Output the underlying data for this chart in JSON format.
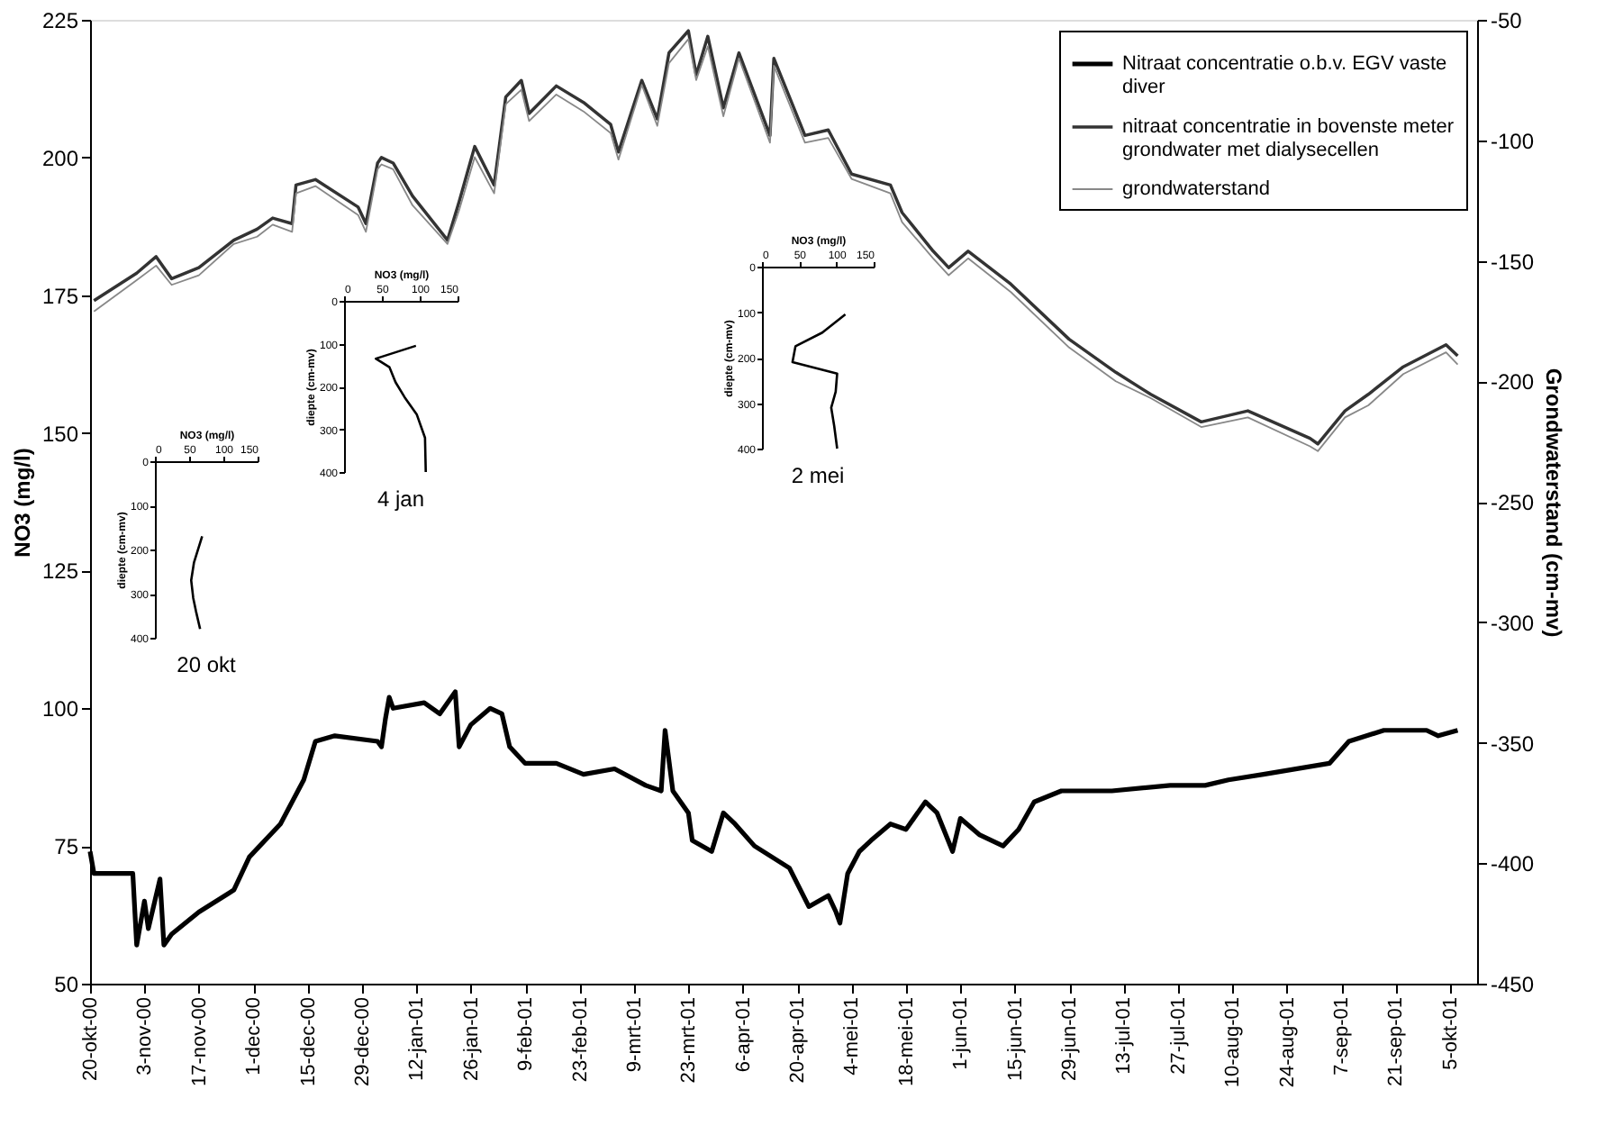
{
  "chart_data": [
    {
      "type": "line",
      "ylabel": "NO3 (mg/l)",
      "y2label": "Grondwaterstand (cm-mv)",
      "legend": "top right",
      "xlim": [
        "2000-10-20",
        "2001-10-12"
      ],
      "xticks": [
        {
          "value": "2000-10-20",
          "label": "20-okt-00"
        },
        {
          "value": "2000-11-03",
          "label": "3-nov-00"
        },
        {
          "value": "2000-11-17",
          "label": "17-nov-00"
        },
        {
          "value": "2000-12-01",
          "label": "1-dec-00"
        },
        {
          "value": "2000-12-15",
          "label": "15-dec-00"
        },
        {
          "value": "2000-12-29",
          "label": "29-dec-00"
        },
        {
          "value": "2001-01-12",
          "label": "12-jan-01"
        },
        {
          "value": "2001-01-26",
          "label": "26-jan-01"
        },
        {
          "value": "2001-02-09",
          "label": "9-feb-01"
        },
        {
          "value": "2001-02-23",
          "label": "23-feb-01"
        },
        {
          "value": "2001-03-09",
          "label": "9-mrt-01"
        },
        {
          "value": "2001-03-23",
          "label": "23-mrt-01"
        },
        {
          "value": "2001-04-06",
          "label": "6-apr-01"
        },
        {
          "value": "2001-04-20",
          "label": "20-apr-01"
        },
        {
          "value": "2001-05-04",
          "label": "4-mei-01"
        },
        {
          "value": "2001-05-18",
          "label": "18-mei-01"
        },
        {
          "value": "2001-06-01",
          "label": "1-jun-01"
        },
        {
          "value": "2001-06-15",
          "label": "15-jun-01"
        },
        {
          "value": "2001-06-29",
          "label": "29-jun-01"
        },
        {
          "value": "2001-07-13",
          "label": "13-jul-01"
        },
        {
          "value": "2001-07-27",
          "label": "27-jul-01"
        },
        {
          "value": "2001-08-10",
          "label": "10-aug-01"
        },
        {
          "value": "2001-08-24",
          "label": "24-aug-01"
        },
        {
          "value": "2001-09-07",
          "label": "7-sep-01"
        },
        {
          "value": "2001-09-21",
          "label": "21-sep-01"
        },
        {
          "value": "2001-10-05",
          "label": "5-okt-01"
        }
      ],
      "ylim": [
        50,
        225
      ],
      "yticks": [
        50,
        75,
        100,
        125,
        150,
        175,
        200,
        225
      ],
      "y2lim": [
        -450,
        -50
      ],
      "y2ticks": [
        -450,
        -400,
        -350,
        -300,
        -250,
        -200,
        -150,
        -100,
        -50
      ],
      "series": [
        {
          "name": "Nitraat concentratie o.b.v. EGV vaste diver",
          "color": "#000000",
          "x": [
            "2000-10-20",
            "2000-10-21",
            "2000-10-31",
            "2000-11-01",
            "2000-11-03",
            "2000-11-04",
            "2000-11-07",
            "2000-11-08",
            "2000-11-10",
            "2000-11-17",
            "2000-11-26",
            "2000-11-30",
            "2000-12-08",
            "2000-12-14",
            "2000-12-17",
            "2000-12-22",
            "2001-01-02",
            "2001-01-03",
            "2001-01-04",
            "2001-01-05",
            "2001-01-06",
            "2001-01-14",
            "2001-01-18",
            "2001-01-20",
            "2001-01-22",
            "2001-01-23",
            "2001-01-26",
            "2001-01-31",
            "2001-02-03",
            "2001-02-05",
            "2001-02-09",
            "2001-02-17",
            "2001-02-24",
            "2001-03-04",
            "2001-03-12",
            "2001-03-16",
            "2001-03-17",
            "2001-03-19",
            "2001-03-23",
            "2001-03-24",
            "2001-03-29",
            "2001-04-01",
            "2001-04-04",
            "2001-04-09",
            "2001-04-18",
            "2001-04-23",
            "2001-04-28",
            "2001-04-30",
            "2001-05-01",
            "2001-05-03",
            "2001-05-06",
            "2001-05-09",
            "2001-05-14",
            "2001-05-18",
            "2001-05-23",
            "2001-05-26",
            "2001-05-30",
            "2001-06-01",
            "2001-06-06",
            "2001-06-12",
            "2001-06-16",
            "2001-06-20",
            "2001-06-27",
            "2001-07-10",
            "2001-07-25",
            "2001-08-03",
            "2001-08-09",
            "2001-08-18",
            "2001-09-04",
            "2001-09-09",
            "2001-09-18",
            "2001-09-29",
            "2001-10-02",
            "2001-10-07"
          ],
          "values": [
            74,
            70,
            70,
            57,
            65,
            60,
            69,
            57,
            59,
            63,
            67,
            73,
            79,
            87,
            94,
            95,
            94,
            93,
            98,
            102,
            100,
            101,
            99,
            101,
            103,
            93,
            97,
            100,
            99,
            93,
            90,
            90,
            88,
            89,
            86,
            85,
            96,
            85,
            81,
            76,
            74,
            81,
            79,
            75,
            71,
            64,
            66,
            63,
            61,
            70,
            74,
            76,
            79,
            78,
            83,
            81,
            74,
            80,
            77,
            75,
            78,
            83,
            85,
            85,
            86,
            86,
            87,
            88,
            90,
            94,
            96,
            96,
            95,
            96
          ]
        },
        {
          "name": "nitraat concentratie in bovenste meter grondwater met dialysecellen",
          "color": "#333333",
          "x": [
            "2000-10-21",
            "2000-11-01",
            "2000-11-06",
            "2000-11-10",
            "2000-11-17",
            "2000-11-26",
            "2000-12-02",
            "2000-12-06",
            "2000-12-11",
            "2000-12-12",
            "2000-12-17",
            "2000-12-28",
            "2000-12-30",
            "2001-01-02",
            "2001-01-03",
            "2001-01-06",
            "2001-01-11",
            "2001-01-20",
            "2001-01-23",
            "2001-01-27",
            "2001-02-01",
            "2001-02-04",
            "2001-02-08",
            "2001-02-10",
            "2001-02-17",
            "2001-02-24",
            "2001-03-03",
            "2001-03-05",
            "2001-03-11",
            "2001-03-15",
            "2001-03-18",
            "2001-03-23",
            "2001-03-25",
            "2001-03-28",
            "2001-04-01",
            "2001-04-05",
            "2001-04-13",
            "2001-04-14",
            "2001-04-18",
            "2001-04-22",
            "2001-04-28",
            "2001-05-04",
            "2001-05-14",
            "2001-05-17",
            "2001-05-25",
            "2001-05-29",
            "2001-06-03",
            "2001-06-14",
            "2001-06-29",
            "2001-07-11",
            "2001-07-20",
            "2001-08-02",
            "2001-08-14",
            "2001-08-30",
            "2001-09-01",
            "2001-09-08",
            "2001-09-14",
            "2001-09-23",
            "2001-10-04",
            "2001-10-07"
          ],
          "values": [
            174,
            179,
            182,
            178,
            180,
            185,
            187,
            189,
            188,
            195,
            196,
            191,
            188,
            199,
            200,
            199,
            193,
            185,
            192,
            202,
            195,
            211,
            214,
            208,
            213,
            210,
            206,
            201,
            214,
            207,
            219,
            223,
            215,
            222,
            209,
            219,
            204,
            218,
            211,
            204,
            205,
            197,
            195,
            190,
            183,
            180,
            183,
            177,
            167,
            161,
            157,
            152,
            154,
            149,
            148,
            154,
            157,
            162,
            166,
            164
          ]
        },
        {
          "name": "grondwaterstand",
          "color": "#888888",
          "axis": "y2",
          "x": [
            "2000-10-21",
            "2000-11-01",
            "2000-11-06",
            "2000-11-10",
            "2000-11-17",
            "2000-11-26",
            "2000-12-02",
            "2000-12-06",
            "2000-12-11",
            "2000-12-12",
            "2000-12-17",
            "2000-12-28",
            "2000-12-30",
            "2001-01-02",
            "2001-01-03",
            "2001-01-06",
            "2001-01-11",
            "2001-01-20",
            "2001-01-23",
            "2001-01-27",
            "2001-02-01",
            "2001-02-04",
            "2001-02-08",
            "2001-02-10",
            "2001-02-17",
            "2001-02-24",
            "2001-03-03",
            "2001-03-05",
            "2001-03-11",
            "2001-03-15",
            "2001-03-18",
            "2001-03-23",
            "2001-03-25",
            "2001-03-28",
            "2001-04-01",
            "2001-04-05",
            "2001-04-13",
            "2001-04-14",
            "2001-04-18",
            "2001-04-22",
            "2001-04-28",
            "2001-05-04",
            "2001-05-14",
            "2001-05-17",
            "2001-05-25",
            "2001-05-29",
            "2001-06-03",
            "2001-06-14",
            "2001-06-29",
            "2001-07-11",
            "2001-07-20",
            "2001-08-02",
            "2001-08-14",
            "2001-08-30",
            "2001-09-01",
            "2001-09-08",
            "2001-09-14",
            "2001-09-23",
            "2001-10-04",
            "2001-10-07"
          ],
          "values": [
            -171,
            -158,
            -152,
            -160,
            -156,
            -143,
            -140,
            -135,
            -138,
            -122,
            -119,
            -131,
            -138,
            -112,
            -110,
            -112,
            -127,
            -143,
            -129,
            -107,
            -122,
            -85,
            -79,
            -92,
            -81,
            -88,
            -97,
            -108,
            -77,
            -94,
            -68,
            -58,
            -75,
            -61,
            -90,
            -66,
            -101,
            -69,
            -85,
            -101,
            -99,
            -116,
            -122,
            -134,
            -149,
            -156,
            -149,
            -163,
            -186,
            -200,
            -207,
            -219,
            -215,
            -227,
            -229,
            -215,
            -210,
            -197,
            -188,
            -193
          ]
        }
      ]
    },
    {
      "type": "line",
      "title": "20 okt",
      "xlabel": "NO3 (mg/l)",
      "ylabel": "diepte (cm-mv)",
      "color": "#000000",
      "xlim": [
        0,
        150
      ],
      "xticks": [
        0,
        50,
        100,
        150
      ],
      "ylim": [
        400,
        0
      ],
      "yticks": [
        0,
        100,
        200,
        300,
        400
      ],
      "x": [
        69,
        57,
        53,
        56,
        60,
        66
      ],
      "values": [
        170,
        230,
        270,
        310,
        340,
        380
      ]
    },
    {
      "type": "line",
      "title": "4 jan",
      "xlabel": "NO3 (mg/l)",
      "ylabel": "diepte (cm-mv)",
      "color": "#000000",
      "xlim": [
        0,
        150
      ],
      "xticks": [
        0,
        50,
        100,
        150
      ],
      "ylim": [
        400,
        0
      ],
      "yticks": [
        0,
        100,
        200,
        300,
        400
      ],
      "x": [
        95,
        42,
        60,
        68,
        80,
        96,
        107,
        108
      ],
      "values": [
        105,
        135,
        155,
        190,
        225,
        265,
        320,
        400
      ]
    },
    {
      "type": "line",
      "title": "2 mei",
      "xlabel": "NO3 (mg/l)",
      "ylabel": "diepte (cm-mv)",
      "color": "#000000",
      "xlim": [
        0,
        150
      ],
      "xticks": [
        0,
        50,
        100,
        150
      ],
      "ylim": [
        400,
        0
      ],
      "yticks": [
        0,
        100,
        200,
        300,
        400
      ],
      "x": [
        112,
        81,
        45,
        41,
        101,
        99,
        93,
        97,
        101
      ],
      "values": [
        105,
        145,
        175,
        210,
        235,
        275,
        310,
        350,
        400
      ]
    }
  ]
}
